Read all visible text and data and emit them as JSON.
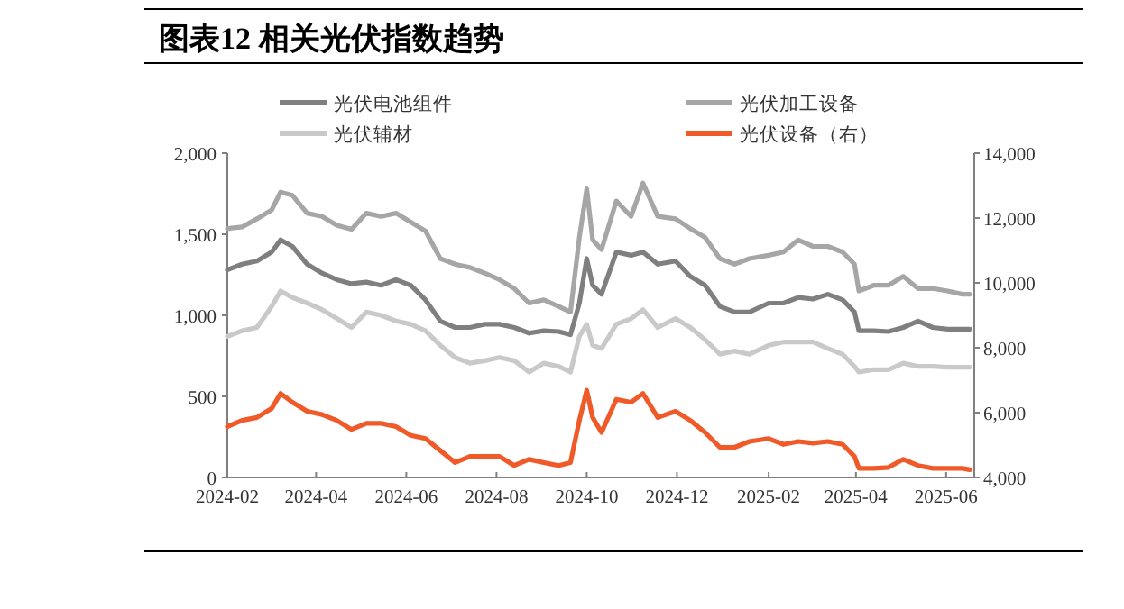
{
  "chart_data": {
    "type": "line",
    "title": "图表12 相关光伏指数趋势",
    "legend": "top",
    "x": [
      "2024-02-01",
      "2024-02-11",
      "2024-02-21",
      "2024-03-02",
      "2024-03-08",
      "2024-03-16",
      "2024-03-26",
      "2024-04-05",
      "2024-04-15",
      "2024-04-25",
      "2024-05-05",
      "2024-05-15",
      "2024-05-25",
      "2024-06-04",
      "2024-06-14",
      "2024-06-24",
      "2024-07-04",
      "2024-07-14",
      "2024-07-24",
      "2024-08-03",
      "2024-08-13",
      "2024-08-23",
      "2024-09-02",
      "2024-09-12",
      "2024-09-20",
      "2024-09-26",
      "2024-10-01",
      "2024-10-05",
      "2024-10-11",
      "2024-10-21",
      "2024-10-31",
      "2024-11-08",
      "2024-11-18",
      "2024-11-30",
      "2024-12-10",
      "2024-12-20",
      "2024-12-30",
      "2025-01-09",
      "2025-01-19",
      "2025-02-01",
      "2025-02-11",
      "2025-02-21",
      "2025-03-03",
      "2025-03-13",
      "2025-03-23",
      "2025-03-31",
      "2025-04-03",
      "2025-04-13",
      "2025-04-23",
      "2025-05-03",
      "2025-05-13",
      "2025-05-23",
      "2025-06-02",
      "2025-06-12",
      "2025-06-17"
    ],
    "series": [
      {
        "name": "光伏电池组件",
        "color": "#7f7f7f",
        "values": [
          1280,
          1315,
          1335,
          1390,
          1465,
          1425,
          1315,
          1260,
          1220,
          1195,
          1205,
          1185,
          1220,
          1185,
          1095,
          965,
          925,
          925,
          945,
          945,
          925,
          890,
          905,
          900,
          880,
          1075,
          1350,
          1185,
          1130,
          1390,
          1370,
          1390,
          1315,
          1335,
          1240,
          1185,
          1055,
          1020,
          1020,
          1075,
          1075,
          1110,
          1100,
          1130,
          1095,
          1020,
          905,
          905,
          900,
          925,
          965,
          925,
          915,
          915,
          915
        ]
      },
      {
        "name": "光伏加工设备",
        "color": "#a6a6a6",
        "values": [
          1535,
          1545,
          1595,
          1650,
          1760,
          1740,
          1630,
          1610,
          1555,
          1530,
          1630,
          1610,
          1630,
          1575,
          1520,
          1350,
          1315,
          1295,
          1260,
          1220,
          1165,
          1075,
          1095,
          1055,
          1020,
          1480,
          1780,
          1465,
          1405,
          1705,
          1610,
          1815,
          1610,
          1595,
          1535,
          1480,
          1350,
          1315,
          1350,
          1370,
          1390,
          1465,
          1425,
          1425,
          1390,
          1315,
          1150,
          1185,
          1185,
          1240,
          1165,
          1165,
          1150,
          1130,
          1130
        ]
      },
      {
        "name": "光伏辅材",
        "color": "#c9c9c9",
        "values": [
          870,
          905,
          925,
          1055,
          1150,
          1110,
          1075,
          1035,
          980,
          925,
          1020,
          1000,
          965,
          945,
          905,
          815,
          740,
          705,
          720,
          740,
          720,
          650,
          705,
          685,
          650,
          870,
          945,
          815,
          795,
          945,
          980,
          1035,
          925,
          980,
          925,
          850,
          760,
          780,
          760,
          815,
          835,
          835,
          835,
          795,
          760,
          685,
          650,
          665,
          665,
          705,
          685,
          685,
          680,
          680,
          680
        ]
      },
      {
        "name": "光伏设备（右）",
        "color": "#f05a28",
        "axis": "y2",
        "values": [
          5570,
          5760,
          5850,
          6130,
          6590,
          6320,
          6040,
          5940,
          5760,
          5480,
          5670,
          5670,
          5570,
          5300,
          5200,
          4830,
          4460,
          4650,
          4650,
          4650,
          4370,
          4560,
          4460,
          4370,
          4460,
          5760,
          6690,
          5850,
          5390,
          6410,
          6320,
          6590,
          5850,
          6040,
          5760,
          5390,
          4930,
          4930,
          5110,
          5200,
          5020,
          5110,
          5060,
          5110,
          5020,
          4650,
          4280,
          4280,
          4310,
          4560,
          4370,
          4280,
          4280,
          4280,
          4240
        ]
      }
    ],
    "xlim": [
      "2024-02-01",
      "2025-06-20"
    ],
    "xticks": [
      {
        "value": "2024-02-01",
        "label": "2024-02"
      },
      {
        "value": "2024-04-01",
        "label": "2024-04"
      },
      {
        "value": "2024-06-01",
        "label": "2024-06"
      },
      {
        "value": "2024-08-01",
        "label": "2024-08"
      },
      {
        "value": "2024-10-01",
        "label": "2024-10"
      },
      {
        "value": "2024-12-01",
        "label": "2024-12"
      },
      {
        "value": "2025-02-01",
        "label": "2025-02"
      },
      {
        "value": "2025-04-01",
        "label": "2025-04"
      },
      {
        "value": "2025-06-01",
        "label": "2025-06"
      }
    ],
    "ylim": [
      0,
      2000
    ],
    "yticks": [
      {
        "value": 0,
        "label": "0"
      },
      {
        "value": 500,
        "label": "500"
      },
      {
        "value": 1000,
        "label": "1,000"
      },
      {
        "value": 1500,
        "label": "1,500"
      },
      {
        "value": 2000,
        "label": "2,000"
      }
    ],
    "y2lim": [
      4000,
      14000
    ],
    "y2ticks": [
      {
        "value": 4000,
        "label": "4,000"
      },
      {
        "value": 6000,
        "label": "6,000"
      },
      {
        "value": 8000,
        "label": "8,000"
      },
      {
        "value": 10000,
        "label": "10,000"
      },
      {
        "value": 12000,
        "label": "12,000"
      },
      {
        "value": 14000,
        "label": "14,000"
      }
    ]
  }
}
